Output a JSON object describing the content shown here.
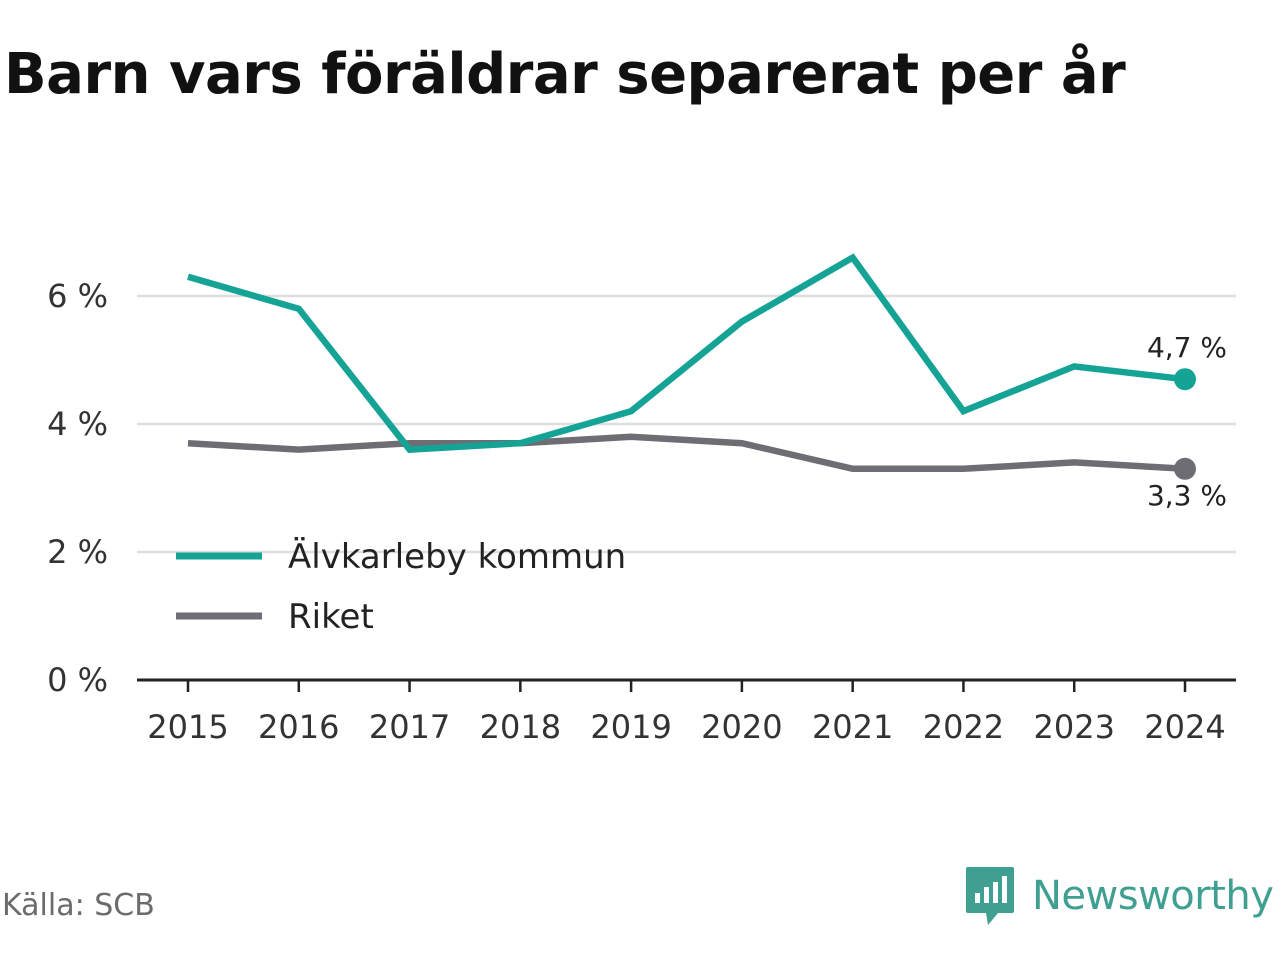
{
  "chart_data": {
    "type": "line",
    "title": "Barn vars föräldrar separerat per år",
    "xlabel": "",
    "ylabel": "",
    "x": [
      "2015",
      "2016",
      "2017",
      "2018",
      "2019",
      "2020",
      "2021",
      "2022",
      "2023",
      "2024"
    ],
    "ylim": [
      0,
      7
    ],
    "yticks": [
      0,
      2,
      4,
      6
    ],
    "ytick_labels": [
      "0 %",
      "2 %",
      "4 %",
      "6 %"
    ],
    "grid": true,
    "legend_position": "bottom-left",
    "series": [
      {
        "name": "Älvkarleby kommun",
        "color": "#15a396",
        "values": [
          6.3,
          5.8,
          3.6,
          3.7,
          4.2,
          5.6,
          6.6,
          4.2,
          4.9,
          4.7
        ],
        "end_label": "4,7 %"
      },
      {
        "name": "Riket",
        "color": "#6e6d73",
        "values": [
          3.7,
          3.6,
          3.7,
          3.7,
          3.8,
          3.7,
          3.3,
          3.3,
          3.4,
          3.3
        ],
        "end_label": "3,3 %"
      }
    ]
  },
  "source": "Källa: SCB",
  "brand": {
    "name": "Newsworthy",
    "icon": "newsworthy-logo-icon",
    "color": "#3fa091"
  }
}
